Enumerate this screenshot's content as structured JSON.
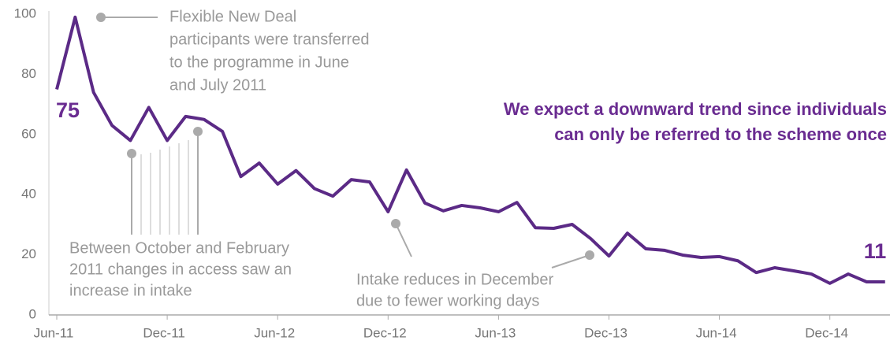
{
  "chart_data": {
    "type": "line",
    "categories": [
      "Jun-11",
      null,
      null,
      null,
      null,
      null,
      "Dec-11",
      null,
      null,
      null,
      null,
      null,
      "Jun-12",
      null,
      null,
      null,
      null,
      null,
      "Dec-12",
      null,
      null,
      null,
      null,
      null,
      "Jun-13",
      null,
      null,
      null,
      null,
      null,
      "Dec-13",
      null,
      null,
      null,
      null,
      null,
      "Jun-14",
      null,
      null,
      null,
      null,
      null,
      "Dec-14",
      null,
      null,
      null
    ],
    "series": [
      {
        "color": "#5b2a86",
        "values": [
          75,
          99,
          74,
          63,
          58,
          69,
          58,
          66,
          65,
          61,
          46,
          50.5,
          43.5,
          48,
          42,
          39.5,
          45,
          44.2,
          34.3,
          48.2,
          37.2,
          34.6,
          36.4,
          35.6,
          34.3,
          37.4,
          29,
          28.8,
          30.1,
          25.4,
          19.6,
          27.2,
          22,
          21.5,
          19.9,
          19.1,
          19.4,
          18,
          14.1,
          15.7,
          14.7,
          13.6,
          10.5,
          13.6,
          11,
          11
        ]
      }
    ],
    "ylim": [
      0,
      100
    ],
    "yticks": [
      0,
      20,
      40,
      60,
      80,
      100
    ],
    "grid": false,
    "annotations": [
      {
        "lines": [
          "Flexible New Deal",
          "participants were transferred",
          "to the programme in June",
          "and July 2011"
        ]
      },
      {
        "lines": [
          "Between  October and February",
          "2011 changes in access saw an",
          "increase in intake"
        ]
      },
      {
        "lines": [
          "Intake reduces in December",
          "due to fewer working days"
        ]
      },
      {
        "lines": [
          "We expect a downward trend since individuals",
          "can only be referred to the scheme once"
        ]
      }
    ]
  }
}
